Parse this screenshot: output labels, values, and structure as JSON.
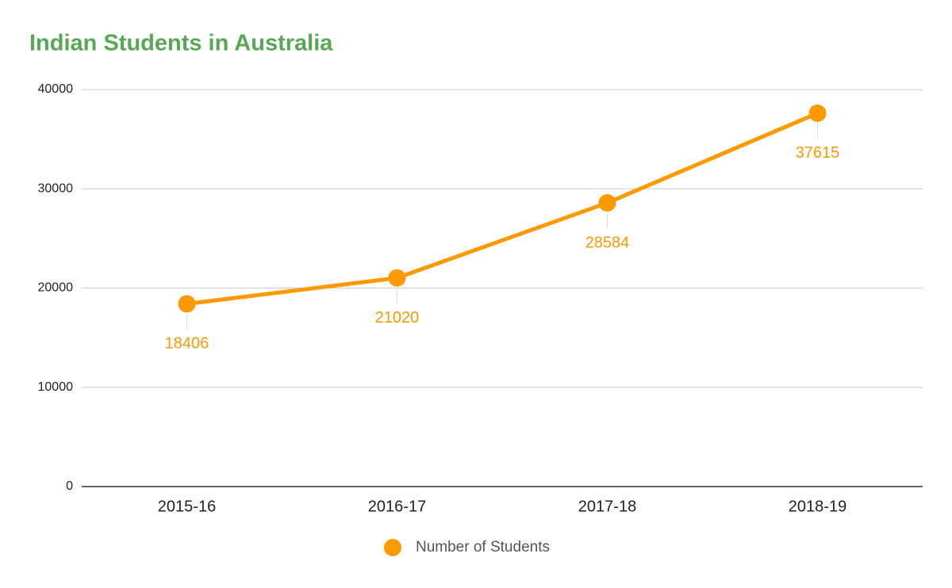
{
  "chart_data": {
    "type": "line",
    "title": "Indian Students in Australia",
    "categories": [
      "2015-16",
      "2016-17",
      "2017-18",
      "2018-19"
    ],
    "series": [
      {
        "name": "Number of Students",
        "color": "#ff9900",
        "values": [
          18406,
          21020,
          28584,
          37615
        ]
      }
    ],
    "ylim": [
      0,
      40000
    ],
    "yticks": [
      0,
      10000,
      20000,
      30000,
      40000
    ],
    "grid": true,
    "legend": "bottom"
  }
}
